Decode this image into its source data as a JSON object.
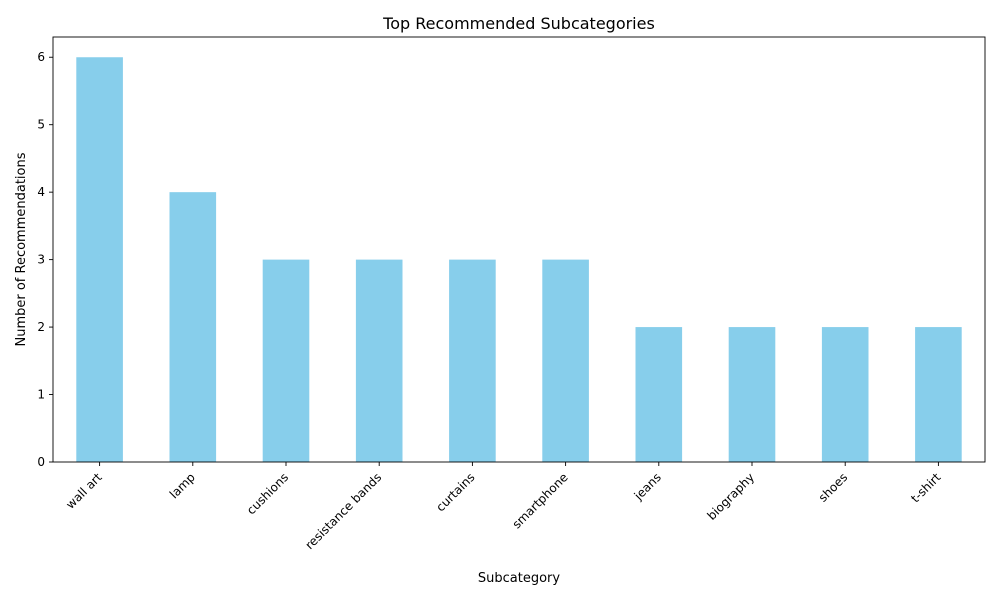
{
  "chart_data": {
    "type": "bar",
    "title": "Top Recommended Subcategories",
    "xlabel": "Subcategory",
    "ylabel": "Number of Recommendations",
    "categories": [
      "wall art",
      "lamp",
      "cushions",
      "resistance bands",
      "curtains",
      "smartphone",
      "jeans",
      "biography",
      "shoes",
      "t-shirt"
    ],
    "values": [
      6,
      4,
      3,
      3,
      3,
      3,
      2,
      2,
      2,
      2
    ],
    "ylim": [
      0,
      6.3
    ],
    "yticks": [
      0,
      1,
      2,
      3,
      4,
      5,
      6
    ],
    "grid": false,
    "bar_color": "#87ceeb",
    "x_tick_rotation": "45 degrees, right-aligned"
  }
}
